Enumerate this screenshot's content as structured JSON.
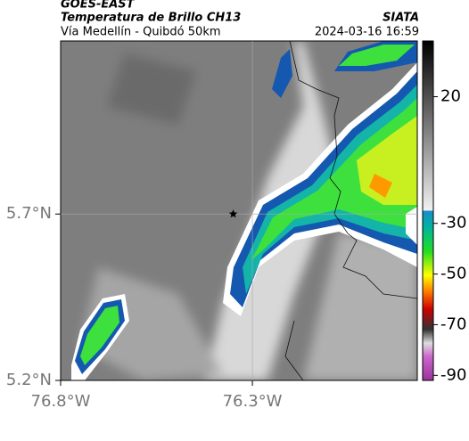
{
  "header": {
    "source": "GOES-EAST",
    "title": "Temperatura de Brillo CH13",
    "org": "SIATA",
    "subtitle": "Vía Medellín - Quibdó 50km",
    "timestamp": "2024-03-16 16:59"
  },
  "map": {
    "xlim": [
      -76.8,
      -75.87
    ],
    "ylim": [
      5.2,
      6.22
    ],
    "xticks": [
      {
        "value": -76.8,
        "label": "76.8°W"
      },
      {
        "value": -76.3,
        "label": "76.3°W"
      }
    ],
    "yticks": [
      {
        "value": 5.7,
        "label": "5.7°N"
      },
      {
        "value": 5.2,
        "label": "5.2°N"
      }
    ],
    "grid": true,
    "marker": {
      "lon": -76.35,
      "lat": 5.7
    }
  },
  "colorbar": {
    "lim": [
      42,
      -92
    ],
    "ticks": [
      20,
      -30,
      -50,
      -70,
      -90
    ]
  }
}
